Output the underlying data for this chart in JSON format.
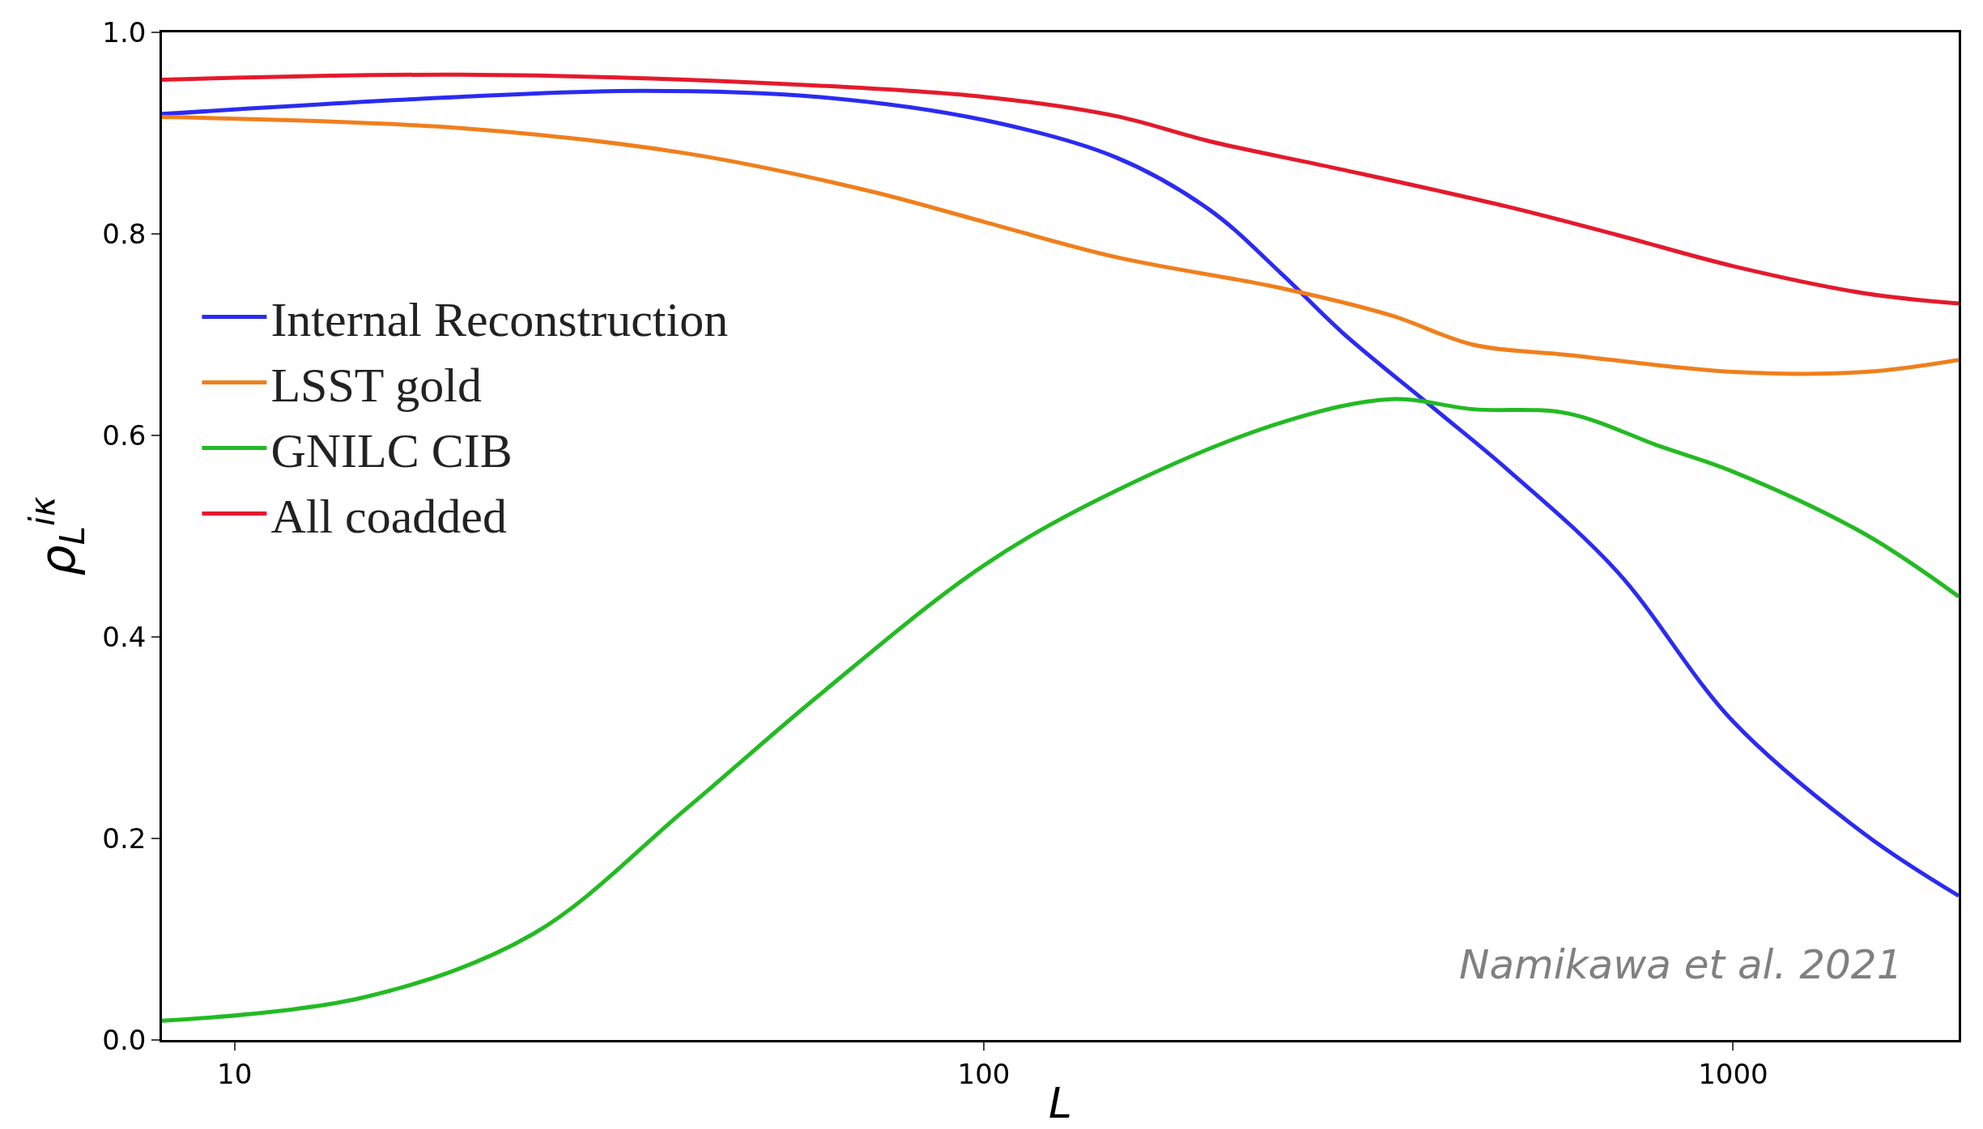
{
  "chart_data": {
    "type": "line",
    "ylabel": "ρ$_{L}$$^{iκ}$",
    "xlabel": "L",
    "log": "x",
    "legend": "left",
    "marker": "none",
    "line_style": "solid",
    "xlim": [
      8,
      2000
    ],
    "xticks": [
      10,
      100,
      1000
    ],
    "ylim": [
      0,
      1.0
    ],
    "yticks": [
      {
        "value": 0,
        "label": "0.0"
      },
      {
        "value": 0.2,
        "label": "0.2"
      },
      {
        "value": 0.4,
        "label": "0.4"
      },
      {
        "value": 0.6,
        "label": "0.6"
      },
      {
        "value": 0.8,
        "label": "0.8"
      },
      {
        "value": 1.0,
        "label": "1.0"
      }
    ],
    "annotations": [
      "Namikawa et al. 2021"
    ],
    "series": [
      {
        "name": "Internal Reconstruction",
        "color": "#2b2bf2",
        "x": [
          8,
          20,
          35,
          60,
          100,
          150,
          200,
          250,
          300,
          400,
          500,
          700,
          1000,
          1500,
          2000
        ],
        "values": [
          0.919,
          0.936,
          0.942,
          0.936,
          0.913,
          0.876,
          0.824,
          0.76,
          0.703,
          0.626,
          0.566,
          0.465,
          0.316,
          0.204,
          0.143
        ]
      },
      {
        "name": "LSST gold",
        "color": "#f07f1c",
        "x": [
          8,
          20,
          40,
          70,
          100,
          150,
          250,
          350,
          450,
          600,
          1000,
          1500,
          2000
        ],
        "values": [
          0.916,
          0.905,
          0.88,
          0.843,
          0.812,
          0.777,
          0.746,
          0.719,
          0.69,
          0.68,
          0.663,
          0.663,
          0.675
        ]
      },
      {
        "name": "GNILC CIB",
        "color": "#22bb22",
        "x": [
          8,
          15,
          25,
          40,
          60,
          100,
          150,
          250,
          350,
          450,
          600,
          800,
          1000,
          1500,
          2000
        ],
        "values": [
          0.019,
          0.043,
          0.105,
          0.229,
          0.341,
          0.471,
          0.545,
          0.613,
          0.636,
          0.626,
          0.622,
          0.589,
          0.564,
          0.502,
          0.44
        ]
      },
      {
        "name": "All coadded",
        "color": "#e41a2c",
        "x": [
          8,
          20,
          50,
          100,
          150,
          200,
          300,
          500,
          700,
          1000,
          1500,
          2000
        ],
        "values": [
          0.953,
          0.958,
          0.95,
          0.936,
          0.917,
          0.892,
          0.864,
          0.827,
          0.799,
          0.768,
          0.741,
          0.731
        ]
      }
    ]
  }
}
